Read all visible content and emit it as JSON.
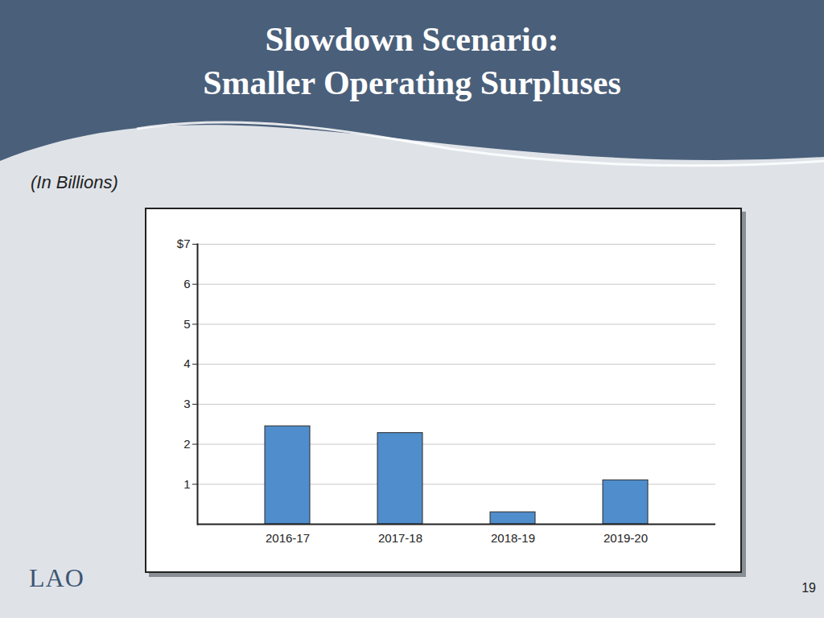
{
  "chart_data": {
    "type": "bar",
    "title": "Slowdown Scenario:",
    "subtitle": "Smaller Operating Surpluses",
    "y_label": "(In Billions)",
    "categories": [
      "2016-17",
      "2017-18",
      "2018-19",
      "2019-20"
    ],
    "values": [
      2.45,
      2.28,
      0.3,
      1.1
    ],
    "color": "#4f8dcc",
    "ylim": [
      0,
      7
    ],
    "yticks": [
      1,
      2,
      3,
      4,
      5,
      6,
      {
        "value": 7,
        "label": "$7"
      }
    ],
    "grid": true,
    "data_labels": false
  },
  "slide": {
    "logo": "LAO",
    "page": "19"
  }
}
